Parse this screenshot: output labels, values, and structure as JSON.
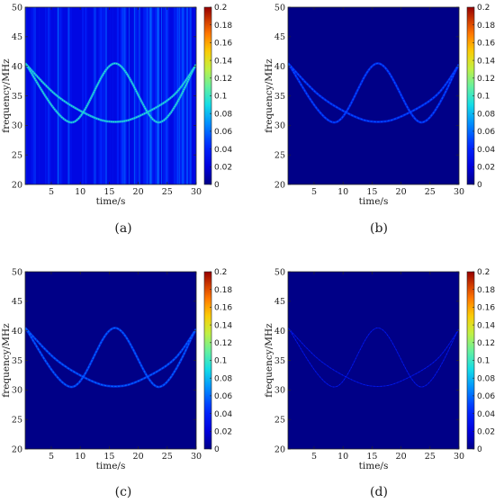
{
  "chart_data": [
    {
      "type": "heatmap",
      "caption": "(a)",
      "xlabel": "time/s",
      "ylabel": "frequency/MHz",
      "xlim": [
        0.5,
        30
      ],
      "ylim": [
        20,
        50
      ],
      "xticks": [
        "5",
        "10",
        "15",
        "20",
        "25",
        "30"
      ],
      "yticks": [
        "20",
        "25",
        "30",
        "35",
        "40",
        "45",
        "50"
      ],
      "colorbar": {
        "min": 0,
        "max": 0.2,
        "ticks": [
          "0",
          "0.02",
          "0.04",
          "0.06",
          "0.08",
          "0.1",
          "0.12",
          "0.14",
          "0.16",
          "0.18",
          "0.2"
        ]
      },
      "background_level": 0.025,
      "noise_level": 0.035,
      "ridge_level": 0.1,
      "ridges": [
        {
          "x": [
            0.5,
            8.5,
            16,
            23.5,
            30
          ],
          "y": [
            40.5,
            30.5,
            40.5,
            30.5,
            40.3
          ]
        },
        {
          "x": [
            0.5,
            6,
            12,
            16,
            20,
            26,
            30
          ],
          "y": [
            40.5,
            35,
            31.5,
            30.6,
            31.5,
            35,
            40.3
          ]
        }
      ]
    },
    {
      "type": "heatmap",
      "caption": "(b)",
      "xlabel": "time/s",
      "ylabel": "frequency/MHz",
      "xlim": [
        0.5,
        30
      ],
      "ylim": [
        20,
        50
      ],
      "xticks": [
        "5",
        "10",
        "15",
        "20",
        "25",
        "30"
      ],
      "yticks": [
        "20",
        "25",
        "30",
        "35",
        "40",
        "45",
        "50"
      ],
      "colorbar": {
        "min": 0,
        "max": 0.2,
        "ticks": [
          "0",
          "0.02",
          "0.04",
          "0.06",
          "0.08",
          "0.1",
          "0.12",
          "0.14",
          "0.16",
          "0.18",
          "0.2"
        ]
      },
      "background_level": 0.0,
      "noise_level": 0.0,
      "ridge_level": 0.055,
      "ridges": [
        {
          "x": [
            0.5,
            8.5,
            16,
            23.5,
            30
          ],
          "y": [
            40.5,
            30.5,
            40.5,
            30.5,
            40.3
          ]
        },
        {
          "x": [
            0.5,
            6,
            12,
            16,
            20,
            26,
            30
          ],
          "y": [
            40.5,
            35,
            31.5,
            30.6,
            31.5,
            35,
            40.3
          ]
        }
      ]
    },
    {
      "type": "heatmap",
      "caption": "(c)",
      "xlabel": "time/s",
      "ylabel": "frequency/MHz",
      "xlim": [
        0.5,
        30
      ],
      "ylim": [
        20,
        50
      ],
      "xticks": [
        "5",
        "10",
        "15",
        "20",
        "25",
        "30"
      ],
      "yticks": [
        "20",
        "25",
        "30",
        "35",
        "40",
        "45",
        "50"
      ],
      "colorbar": {
        "min": 0,
        "max": 0.2,
        "ticks": [
          "0",
          "0.02",
          "0.04",
          "0.06",
          "0.08",
          "0.1",
          "0.12",
          "0.14",
          "0.16",
          "0.18",
          "0.2"
        ]
      },
      "background_level": 0.0,
      "noise_level": 0.0,
      "ridge_level": 0.06,
      "ridges": [
        {
          "x": [
            0.5,
            8.5,
            16,
            23.5,
            30
          ],
          "y": [
            40.5,
            30.5,
            40.5,
            30.5,
            40.3
          ]
        },
        {
          "x": [
            0.5,
            6,
            12,
            16,
            20,
            26,
            30
          ],
          "y": [
            40.5,
            35,
            31.5,
            30.6,
            31.5,
            35,
            40.3
          ]
        }
      ]
    },
    {
      "type": "heatmap",
      "caption": "(d)",
      "xlabel": "time/s",
      "ylabel": "frequency/MHz",
      "xlim": [
        0.5,
        30
      ],
      "ylim": [
        20,
        50
      ],
      "xticks": [
        "5",
        "10",
        "15",
        "20",
        "25",
        "30"
      ],
      "yticks": [
        "20",
        "25",
        "30",
        "35",
        "40",
        "45",
        "50"
      ],
      "colorbar": {
        "min": 0,
        "max": 0.2,
        "ticks": [
          "0",
          "0.02",
          "0.04",
          "0.06",
          "0.08",
          "0.1",
          "0.12",
          "0.14",
          "0.16",
          "0.18",
          "0.2"
        ]
      },
      "background_level": 0.0,
      "noise_level": 0.0,
      "ridge_level": 0.04,
      "ridges": [
        {
          "x": [
            0.5,
            8.5,
            16,
            23.5,
            30
          ],
          "y": [
            40.5,
            30.5,
            40.5,
            30.5,
            40.3
          ]
        },
        {
          "x": [
            0.5,
            6,
            12,
            16,
            20,
            26,
            30
          ],
          "y": [
            40.5,
            35,
            31.5,
            30.6,
            31.5,
            35,
            40.3
          ]
        }
      ]
    }
  ]
}
